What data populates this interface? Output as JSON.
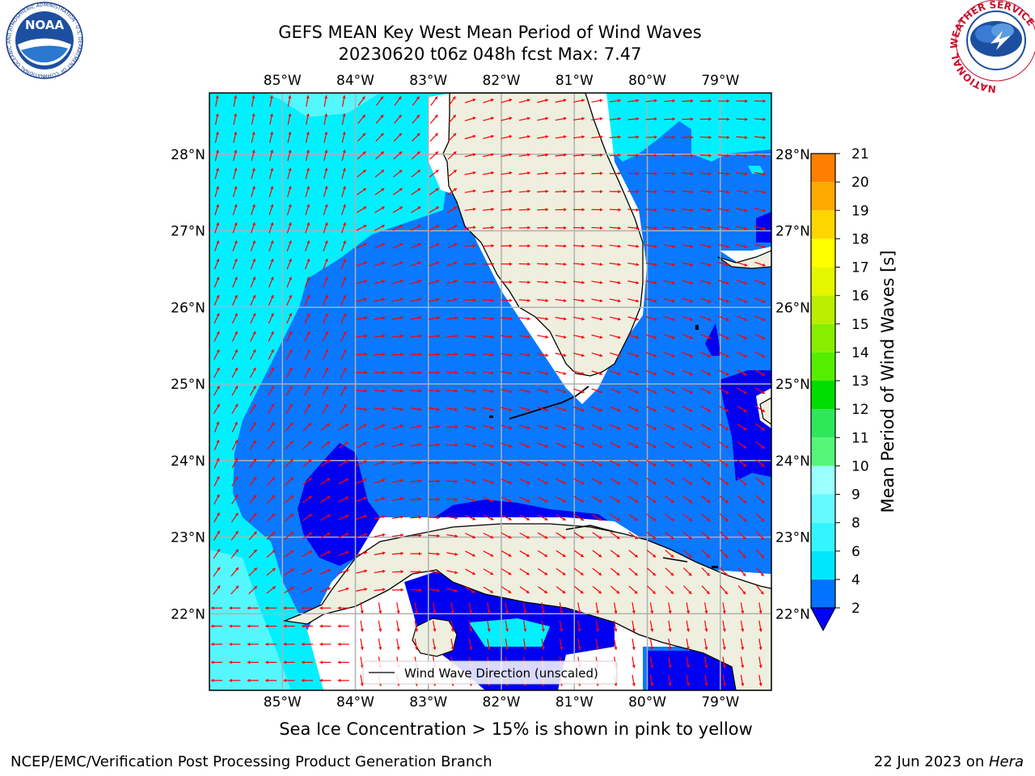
{
  "title": {
    "line1": "GEFS MEAN Key West Mean Period of Wind Waves",
    "line2": "20230620 t06z 048h fcst   Max: 7.47"
  },
  "caption": "Sea Ice Concentration > 15% is shown in pink to yellow",
  "footer": {
    "left": "NCEP/EMC/Verification Post Processing Product Generation Branch",
    "date": "22 Jun 2023 on ",
    "machine": "Hera"
  },
  "logos": {
    "noara_text": "NOAA",
    "noaa_ring": "NATIONAL OCEANIC AND ATMOSPHERIC ADMINISTRATION · U.S. DEPARTMENT OF COMMERCE",
    "nws_ring": "NATIONAL WEATHER SERVICE"
  },
  "map": {
    "lon_labels": [
      "85°W",
      "84°W",
      "83°W",
      "82°W",
      "81°W",
      "80°W",
      "79°W"
    ],
    "lon_values": [
      -85,
      -84,
      -83,
      -82,
      -81,
      -80,
      -79
    ],
    "lat_labels": [
      "28°N",
      "27°N",
      "26°N",
      "25°N",
      "24°N",
      "23°N",
      "22°N"
    ],
    "lat_values": [
      28,
      27,
      26,
      25,
      24,
      23,
      22
    ],
    "legend": "Wind Wave Direction (unscaled)",
    "arrow_color": "#ff0000"
  },
  "colorbar": {
    "label": "Mean Period of Wind Waves [s]",
    "ticks": [
      "2",
      "4",
      "6",
      "8",
      "9",
      "10",
      "11",
      "12",
      "13",
      "14",
      "15",
      "16",
      "17",
      "18",
      "19",
      "20",
      "21"
    ],
    "colors": [
      "#0073ff",
      "#00e6ff",
      "#33f5ff",
      "#66faff",
      "#99ffff",
      "#55f57a",
      "#2ee85a",
      "#00dd00",
      "#55ee00",
      "#88ee00",
      "#bbee00",
      "#e6f500",
      "#ffff00",
      "#ffd500",
      "#ffaa00",
      "#ff8000",
      "#ff5500",
      "#ff2a00",
      "#ff0000"
    ]
  },
  "chart_data": {
    "type": "heatmap",
    "variable": "Mean Period of Wind Waves [s]",
    "max": 7.47,
    "lon_range": [
      -86.0,
      -78.3
    ],
    "lat_range": [
      21.0,
      28.8
    ],
    "levels": [
      2,
      4,
      6,
      8,
      9,
      10,
      11,
      12,
      13,
      14,
      15,
      16,
      17,
      18,
      19,
      20,
      21
    ],
    "regions": [
      {
        "area": "northeast Gulf of Mexico",
        "period_band": "4-6"
      },
      {
        "area": "southeast Gulf / Florida Straits",
        "period_band": "2-4"
      },
      {
        "area": "north of Cuba near 84W, 23.5N",
        "period_band": "<2"
      },
      {
        "area": "Bahamas banks",
        "period_band": "<2"
      }
    ]
  }
}
